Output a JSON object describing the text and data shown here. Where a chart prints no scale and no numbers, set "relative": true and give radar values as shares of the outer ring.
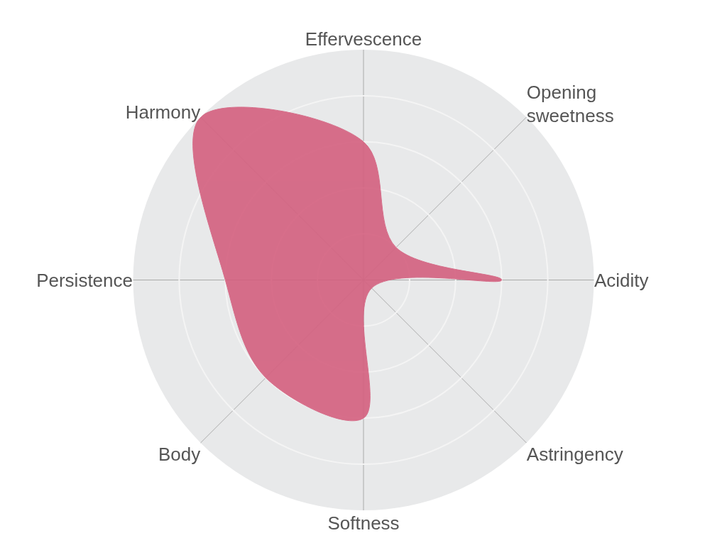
{
  "chart_data": {
    "type": "radar",
    "relative": true,
    "categories": [
      "Effervescence",
      "Opening\nsweetness",
      "Acidity",
      "Astringency",
      "Softness",
      "Body",
      "Persistence",
      "Harmony"
    ],
    "series": [
      {
        "color": "#d4607f",
        "values": [
          0.6,
          0.2,
          0.6,
          0.05,
          0.6,
          0.6,
          0.6,
          1.0
        ]
      }
    ],
    "grid": true
  }
}
